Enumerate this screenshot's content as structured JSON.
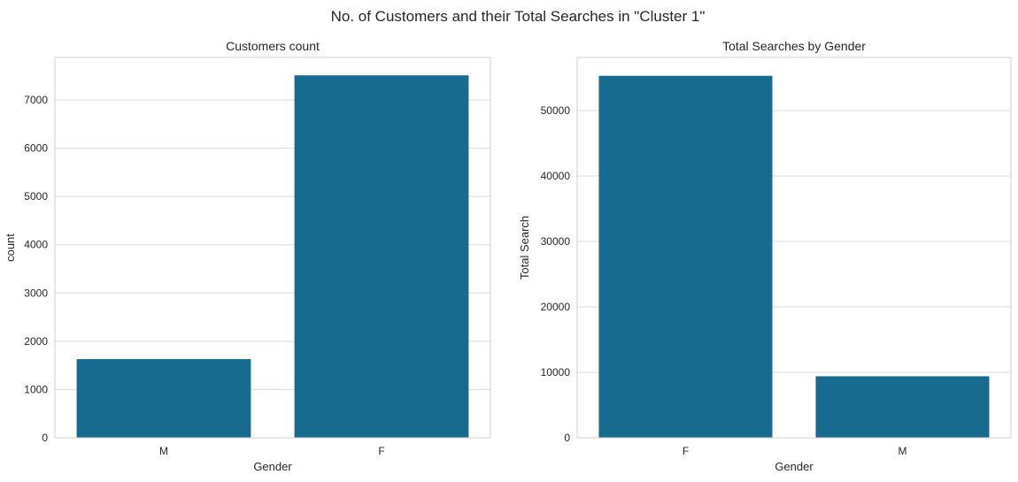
{
  "figure": {
    "title": "No. of Customers and their Total Searches in \"Cluster 1\"",
    "bar_color": "#176b8f"
  },
  "chart_data": [
    {
      "type": "bar",
      "title": "Customers count",
      "xlabel": "Gender",
      "ylabel": "count",
      "categories": [
        "M",
        "F"
      ],
      "values": [
        1630,
        7510
      ],
      "ylim": [
        0,
        7880
      ],
      "yticks": [
        0,
        1000,
        2000,
        3000,
        4000,
        5000,
        6000,
        7000
      ],
      "grid": true
    },
    {
      "type": "bar",
      "title": "Total Searches by Gender",
      "xlabel": "Gender",
      "ylabel": "Total Search",
      "categories": [
        "F",
        "M"
      ],
      "values": [
        55300,
        9400
      ],
      "ylim": [
        0,
        58100
      ],
      "yticks": [
        0,
        10000,
        20000,
        30000,
        40000,
        50000
      ],
      "grid": true
    }
  ]
}
